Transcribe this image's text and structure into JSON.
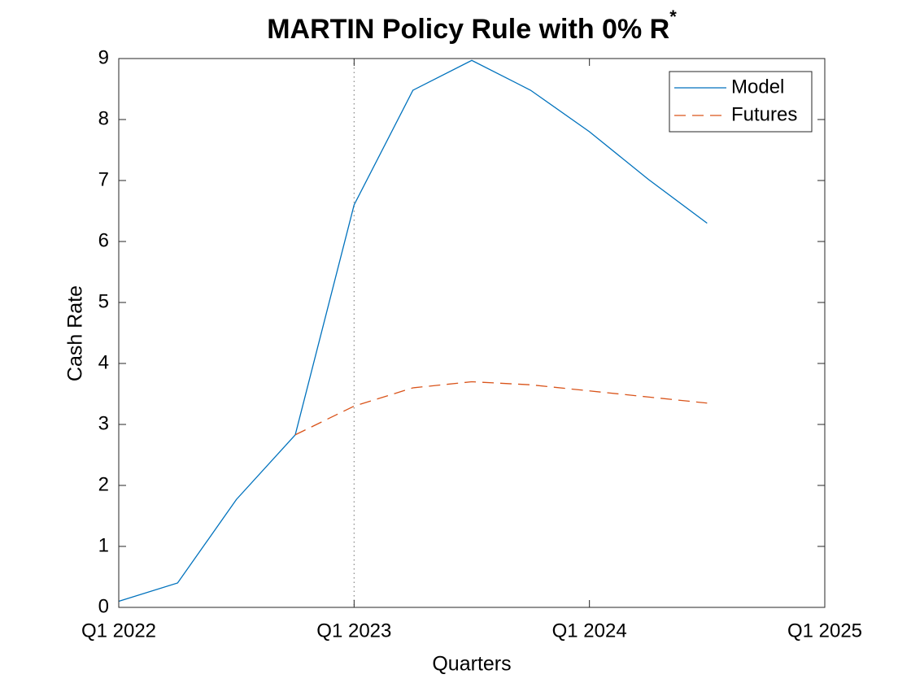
{
  "chart_data": {
    "type": "line",
    "title": "MARTIN Policy Rule with 0% R",
    "title_superscript": "*",
    "xlabel": "Quarters",
    "ylabel": "Cash Rate",
    "x": [
      2022,
      2022.25,
      2022.5,
      2022.75,
      2023,
      2023.25,
      2023.5,
      2023.75,
      2024,
      2024.25,
      2024.5
    ],
    "series": [
      {
        "name": "Model",
        "color": "#0072BD",
        "linestyle": "solid",
        "values": [
          0.1,
          0.4,
          1.77,
          2.83,
          6.6,
          8.48,
          8.97,
          8.48,
          7.8,
          7.02,
          6.3
        ]
      },
      {
        "name": "Futures",
        "color": "#D95319",
        "linestyle": "dashed",
        "values": [
          null,
          null,
          null,
          2.83,
          3.3,
          3.6,
          3.7,
          3.65,
          3.55,
          3.45,
          3.35
        ]
      }
    ],
    "xlim": [
      2022,
      2025
    ],
    "xticks": [
      {
        "value": 2022,
        "label": "Q1 2022"
      },
      {
        "value": 2023,
        "label": "Q1 2023"
      },
      {
        "value": 2024,
        "label": "Q1 2024"
      },
      {
        "value": 2025,
        "label": "Q1 2025"
      }
    ],
    "ylim": [
      0,
      9
    ],
    "yticks": [
      0,
      1,
      2,
      3,
      4,
      5,
      6,
      7,
      8,
      9
    ],
    "vline": 2023,
    "grid": false,
    "legend": "northeast"
  }
}
